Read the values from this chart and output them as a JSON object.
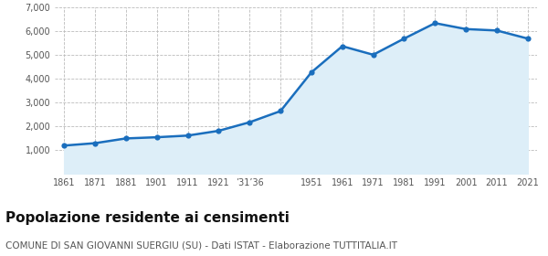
{
  "years": [
    1861,
    1871,
    1881,
    1901,
    1911,
    1921,
    1931,
    1936,
    1951,
    1961,
    1971,
    1981,
    1991,
    2001,
    2011,
    2021
  ],
  "population": [
    1200,
    1300,
    1500,
    1550,
    1620,
    1820,
    2180,
    2650,
    4280,
    5380,
    5020,
    5700,
    6350,
    6100,
    6040,
    5700
  ],
  "tick_labels": [
    "1861",
    "1871",
    "1881",
    "1901",
    "1911",
    "1921",
    "’31’36",
    "",
    "1951",
    "1961",
    "1971",
    "1981",
    "1991",
    "2001",
    "2011",
    "2021"
  ],
  "line_color": "#1a6ebd",
  "fill_color": "#ddeef8",
  "marker_color": "#1a6ebd",
  "background_color": "#ffffff",
  "grid_color": "#bbbbbb",
  "title": "Popolazione residente ai censimenti",
  "subtitle": "COMUNE DI SAN GIOVANNI SUERGIU (SU) - Dati ISTAT - Elaborazione TUTTITALIA.IT",
  "title_fontsize": 11,
  "subtitle_fontsize": 7.5,
  "ylim": [
    0,
    7000
  ],
  "yticks": [
    1000,
    2000,
    3000,
    4000,
    5000,
    6000,
    7000
  ]
}
